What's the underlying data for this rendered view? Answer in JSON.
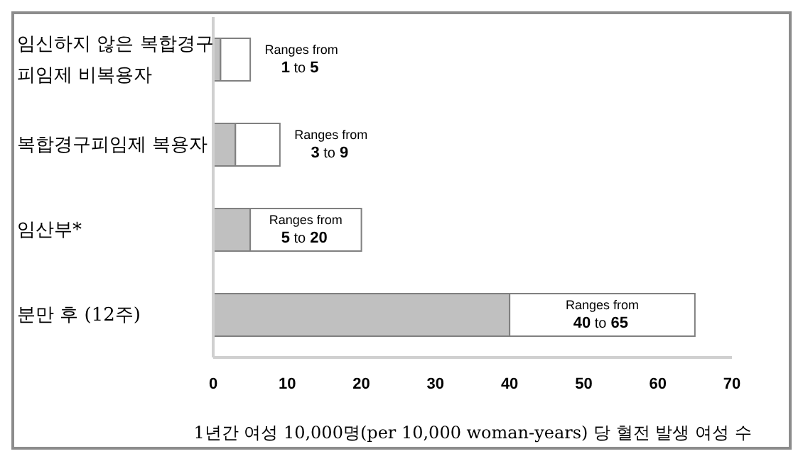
{
  "chart_data": {
    "type": "bar",
    "orientation": "horizontal",
    "stacked": true,
    "categories": [
      "임신하지 않은 복합경구 피임제 비복용자",
      "복합경구피임제 복용자",
      "임산부*",
      "분만 후 (12주)"
    ],
    "series": [
      {
        "color": "#c0c0c0",
        "values": [
          1,
          3,
          5,
          40
        ]
      },
      {
        "color": "#ffffff",
        "values": [
          4,
          6,
          15,
          25
        ]
      }
    ],
    "xlabel": "1년간 여성 10,000명(per 10,000 woman-years) 당 혈전 발생 여성 수",
    "xlim": [
      0,
      70
    ],
    "xticks": [
      0,
      10,
      20,
      30,
      40,
      50,
      60,
      70
    ],
    "grid": false,
    "legend": false,
    "annotations": [
      "Ranges from 1 to 5",
      "Ranges from 3 to 9",
      "Ranges from 5 to 20",
      "Ranges from 40 to 65"
    ]
  }
}
